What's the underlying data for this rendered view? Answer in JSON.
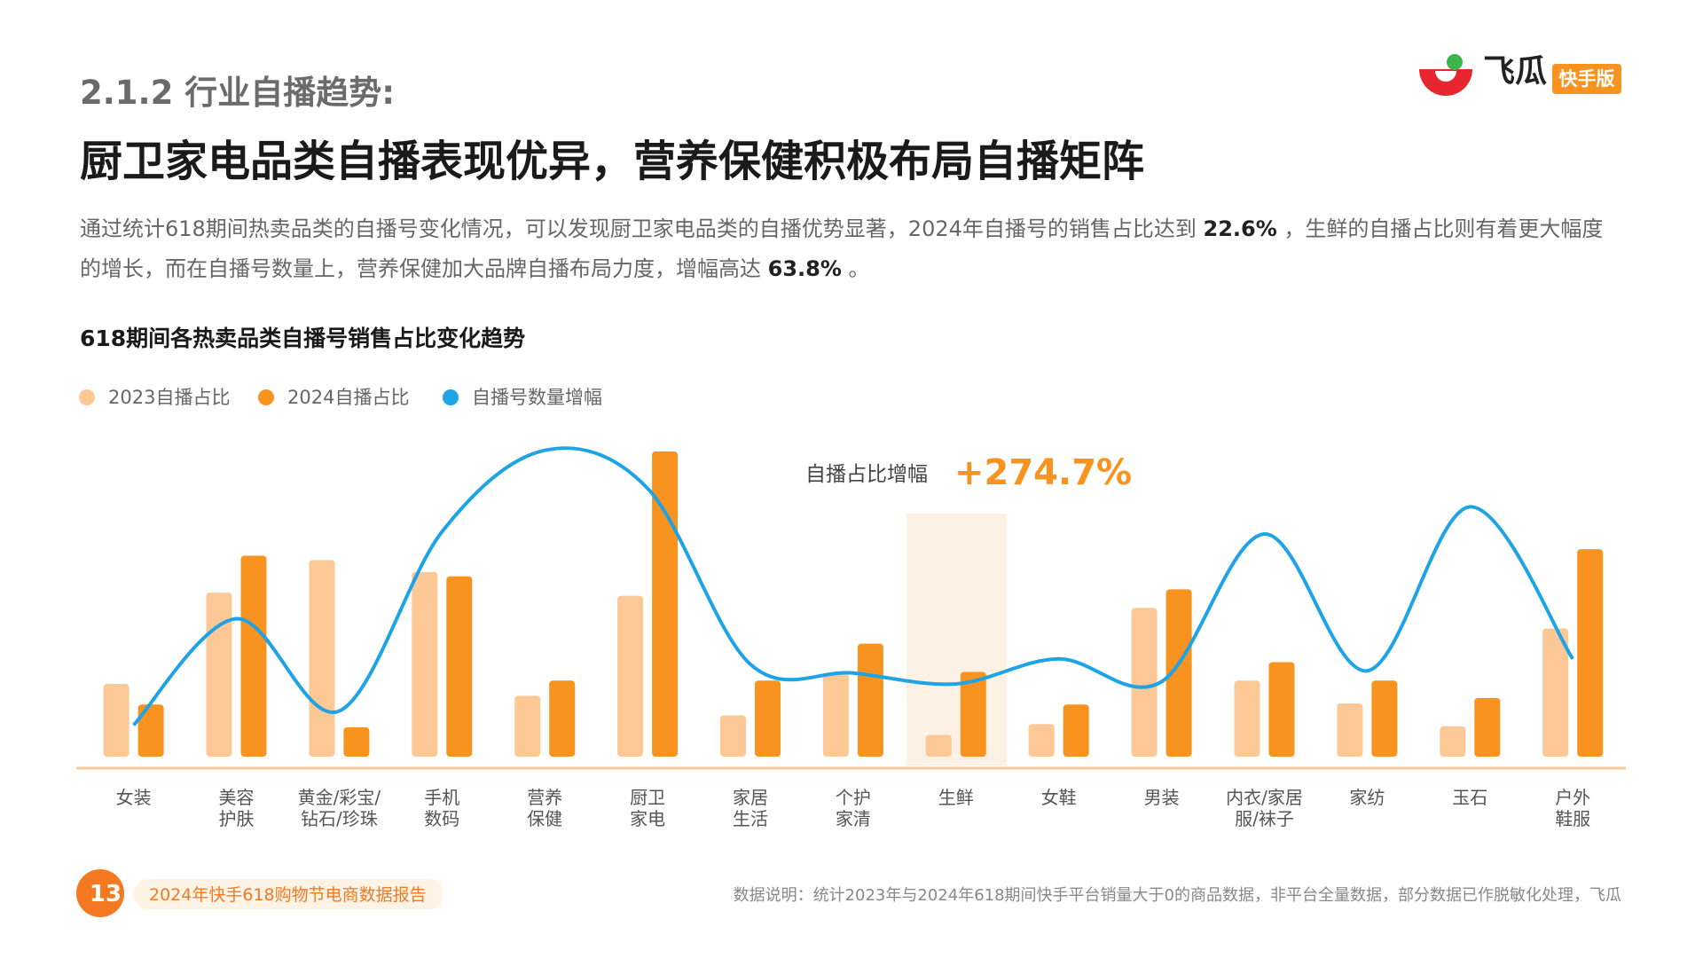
{
  "header": {
    "section": "2.1.2 行业自播趋势:",
    "title": "厨卫家电品类自播表现优异，营养保健积极布局自播矩阵",
    "logo_name": "飞瓜",
    "logo_badge": "快手版"
  },
  "paragraph": {
    "parts": [
      "通过统计618期间热卖品类的自播号变化情况，可以发现厨卫家电品类的自播优势显著，2024年自播号的销售占比达到 ",
      "22.6%",
      " ，生鲜的自播占比则有着更大幅度的增长，而在自播号数量上，营养保健加大品牌自播布局力度，增幅高达 ",
      "63.8%",
      " 。"
    ]
  },
  "chart_data": {
    "type": "bar-line",
    "title": "618期间各热卖品类自播号销售占比变化趋势",
    "categories": [
      [
        "女装"
      ],
      [
        "美容",
        "护肤"
      ],
      [
        "黄金/彩宝/",
        "钻石/珍珠"
      ],
      [
        "手机",
        "数码"
      ],
      [
        "营养",
        "保健"
      ],
      [
        "厨卫",
        "家电"
      ],
      [
        "家居",
        "生活"
      ],
      [
        "个护",
        "家清"
      ],
      [
        "生鲜"
      ],
      [
        "女鞋"
      ],
      [
        "男装"
      ],
      [
        "内衣/家居",
        "服/袜子"
      ],
      [
        "家纺"
      ],
      [
        "玉石"
      ],
      [
        "户外",
        "鞋服"
      ]
    ],
    "series": [
      {
        "name": "2023自播占比",
        "color": "#fbc896",
        "values": [
          67,
          151,
          181,
          170,
          56,
          148,
          38,
          77,
          20,
          30,
          137,
          70,
          49,
          28,
          118
        ]
      },
      {
        "name": "2024自播占比",
        "color": "#f7931e",
        "values": [
          48,
          185,
          27,
          166,
          70,
          281,
          70,
          104,
          78,
          48,
          154,
          87,
          70,
          54,
          191
        ]
      },
      {
        "name": "自播号数量增幅",
        "type": "line",
        "color": "#1ea3e6",
        "values": [
          29,
          127,
          42,
          207,
          282,
          247,
          85,
          77,
          67,
          90,
          69,
          205,
          79,
          230,
          90
        ]
      }
    ],
    "annotation": {
      "label": "自播占比增幅",
      "value_label": "+274.7%"
    },
    "highlight_category": 8
  },
  "footer": {
    "page": "13",
    "report": "2024年快手618购物节电商数据报告",
    "note": "数据说明：统计2023年与2024年618期间快手平台销量大于0的商品数据，非平台全量数据，部分数据已作脱敏化处理，飞瓜"
  }
}
